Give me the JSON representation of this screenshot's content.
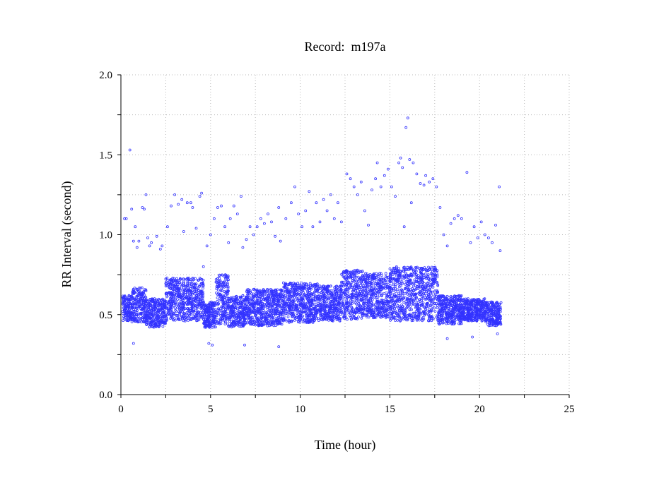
{
  "chart_data": {
    "type": "scatter",
    "title": "Record:  m197a",
    "xlabel": "Time (hour)",
    "ylabel": "RR Interval (second)",
    "xlim": [
      0,
      25
    ],
    "ylim": [
      0,
      2.0
    ],
    "x_ticks": [
      0,
      5,
      10,
      15,
      20,
      25
    ],
    "x_tick_labels": [
      "0",
      "5",
      "10",
      "15",
      "20",
      "25"
    ],
    "y_ticks": [
      0.0,
      0.5,
      1.0,
      1.5,
      2.0
    ],
    "y_tick_labels": [
      "0.0",
      "0.5",
      "1.0",
      "1.5",
      "2.0"
    ],
    "grid": true,
    "marker_color": "#3333ff",
    "series": [
      {
        "baseline_band": [
          {
            "x": [
              0.1,
              0.6
            ],
            "lo": 0.46,
            "hi": 0.62
          },
          {
            "x": [
              0.6,
              1.4
            ],
            "lo": 0.45,
            "hi": 0.67
          },
          {
            "x": [
              1.4,
              2.5
            ],
            "lo": 0.42,
            "hi": 0.6
          },
          {
            "x": [
              2.5,
              4.6
            ],
            "lo": 0.46,
            "hi": 0.73
          },
          {
            "x": [
              4.6,
              5.3
            ],
            "lo": 0.42,
            "hi": 0.58
          },
          {
            "x": [
              5.3,
              6.0
            ],
            "lo": 0.44,
            "hi": 0.75
          },
          {
            "x": [
              6.0,
              7.0
            ],
            "lo": 0.42,
            "hi": 0.62
          },
          {
            "x": [
              7.0,
              9.0
            ],
            "lo": 0.43,
            "hi": 0.66
          },
          {
            "x": [
              9.0,
              11.0
            ],
            "lo": 0.45,
            "hi": 0.7
          },
          {
            "x": [
              11.0,
              12.3
            ],
            "lo": 0.46,
            "hi": 0.68
          },
          {
            "x": [
              12.3,
              13.5
            ],
            "lo": 0.47,
            "hi": 0.78
          },
          {
            "x": [
              13.5,
              15.0
            ],
            "lo": 0.48,
            "hi": 0.76
          },
          {
            "x": [
              15.0,
              17.7
            ],
            "lo": 0.46,
            "hi": 0.8
          },
          {
            "x": [
              17.7,
              19.0
            ],
            "lo": 0.44,
            "hi": 0.62
          },
          {
            "x": [
              19.0,
              20.3
            ],
            "lo": 0.46,
            "hi": 0.6
          },
          {
            "x": [
              20.3,
              21.2
            ],
            "lo": 0.43,
            "hi": 0.58
          }
        ],
        "outliers": [
          [
            0.2,
            1.1
          ],
          [
            0.3,
            1.1
          ],
          [
            0.5,
            1.53
          ],
          [
            0.6,
            1.16
          ],
          [
            0.7,
            0.96
          ],
          [
            0.8,
            1.05
          ],
          [
            0.9,
            0.92
          ],
          [
            1.0,
            0.96
          ],
          [
            1.2,
            1.17
          ],
          [
            1.3,
            1.16
          ],
          [
            1.4,
            1.25
          ],
          [
            1.5,
            0.98
          ],
          [
            1.6,
            0.93
          ],
          [
            1.7,
            0.95
          ],
          [
            2.0,
            0.99
          ],
          [
            2.2,
            0.91
          ],
          [
            2.3,
            0.93
          ],
          [
            2.6,
            1.05
          ],
          [
            2.8,
            1.18
          ],
          [
            3.0,
            1.25
          ],
          [
            3.2,
            1.19
          ],
          [
            3.4,
            1.22
          ],
          [
            3.5,
            1.02
          ],
          [
            3.7,
            1.2
          ],
          [
            3.9,
            1.2
          ],
          [
            4.0,
            1.17
          ],
          [
            4.2,
            1.04
          ],
          [
            4.4,
            1.24
          ],
          [
            4.5,
            1.26
          ],
          [
            4.6,
            0.8
          ],
          [
            4.8,
            0.93
          ],
          [
            5.0,
            1.0
          ],
          [
            5.2,
            1.1
          ],
          [
            5.4,
            1.17
          ],
          [
            5.6,
            1.18
          ],
          [
            5.8,
            1.05
          ],
          [
            6.0,
            0.95
          ],
          [
            6.1,
            1.1
          ],
          [
            6.3,
            1.18
          ],
          [
            6.5,
            1.13
          ],
          [
            6.7,
            1.24
          ],
          [
            6.8,
            0.92
          ],
          [
            7.0,
            0.97
          ],
          [
            7.2,
            1.05
          ],
          [
            7.4,
            1.0
          ],
          [
            7.6,
            1.05
          ],
          [
            7.8,
            1.1
          ],
          [
            8.0,
            1.07
          ],
          [
            8.2,
            1.13
          ],
          [
            8.4,
            1.08
          ],
          [
            8.6,
            0.99
          ],
          [
            8.8,
            1.17
          ],
          [
            8.9,
            0.96
          ],
          [
            9.2,
            1.1
          ],
          [
            9.5,
            1.2
          ],
          [
            9.7,
            1.3
          ],
          [
            9.9,
            1.13
          ],
          [
            10.1,
            1.05
          ],
          [
            10.3,
            1.15
          ],
          [
            10.5,
            1.27
          ],
          [
            10.7,
            1.05
          ],
          [
            10.9,
            1.2
          ],
          [
            11.1,
            1.08
          ],
          [
            11.3,
            1.22
          ],
          [
            11.5,
            1.15
          ],
          [
            11.7,
            1.25
          ],
          [
            11.9,
            1.1
          ],
          [
            12.1,
            1.2
          ],
          [
            12.3,
            1.08
          ],
          [
            12.6,
            1.38
          ],
          [
            12.8,
            1.35
          ],
          [
            13.0,
            1.3
          ],
          [
            13.2,
            1.25
          ],
          [
            13.4,
            1.33
          ],
          [
            13.6,
            1.15
          ],
          [
            13.8,
            1.06
          ],
          [
            14.0,
            1.28
          ],
          [
            14.2,
            1.35
          ],
          [
            14.3,
            1.45
          ],
          [
            14.5,
            1.3
          ],
          [
            14.7,
            1.37
          ],
          [
            14.9,
            1.41
          ],
          [
            15.1,
            1.3
          ],
          [
            15.3,
            1.24
          ],
          [
            15.5,
            1.45
          ],
          [
            15.6,
            1.48
          ],
          [
            15.7,
            1.42
          ],
          [
            15.8,
            1.05
          ],
          [
            15.9,
            1.67
          ],
          [
            16.0,
            1.73
          ],
          [
            16.1,
            1.47
          ],
          [
            16.2,
            1.2
          ],
          [
            16.3,
            1.45
          ],
          [
            16.5,
            1.38
          ],
          [
            16.7,
            1.32
          ],
          [
            16.9,
            1.31
          ],
          [
            17.0,
            1.37
          ],
          [
            17.2,
            1.33
          ],
          [
            17.4,
            1.35
          ],
          [
            17.6,
            1.3
          ],
          [
            17.8,
            1.17
          ],
          [
            18.0,
            1.0
          ],
          [
            18.2,
            0.93
          ],
          [
            18.4,
            1.07
          ],
          [
            18.6,
            1.1
          ],
          [
            18.8,
            1.12
          ],
          [
            19.0,
            1.1
          ],
          [
            19.3,
            1.39
          ],
          [
            19.5,
            0.95
          ],
          [
            19.7,
            1.05
          ],
          [
            19.9,
            0.98
          ],
          [
            20.1,
            1.08
          ],
          [
            20.3,
            1.0
          ],
          [
            20.5,
            0.98
          ],
          [
            20.7,
            0.95
          ],
          [
            20.9,
            1.06
          ],
          [
            21.1,
            1.3
          ],
          [
            21.15,
            0.9
          ],
          [
            0.7,
            0.32
          ],
          [
            4.9,
            0.32
          ],
          [
            5.1,
            0.31
          ],
          [
            6.9,
            0.31
          ],
          [
            8.8,
            0.3
          ],
          [
            18.2,
            0.35
          ],
          [
            19.6,
            0.36
          ],
          [
            21.0,
            0.38
          ]
        ]
      }
    ]
  }
}
